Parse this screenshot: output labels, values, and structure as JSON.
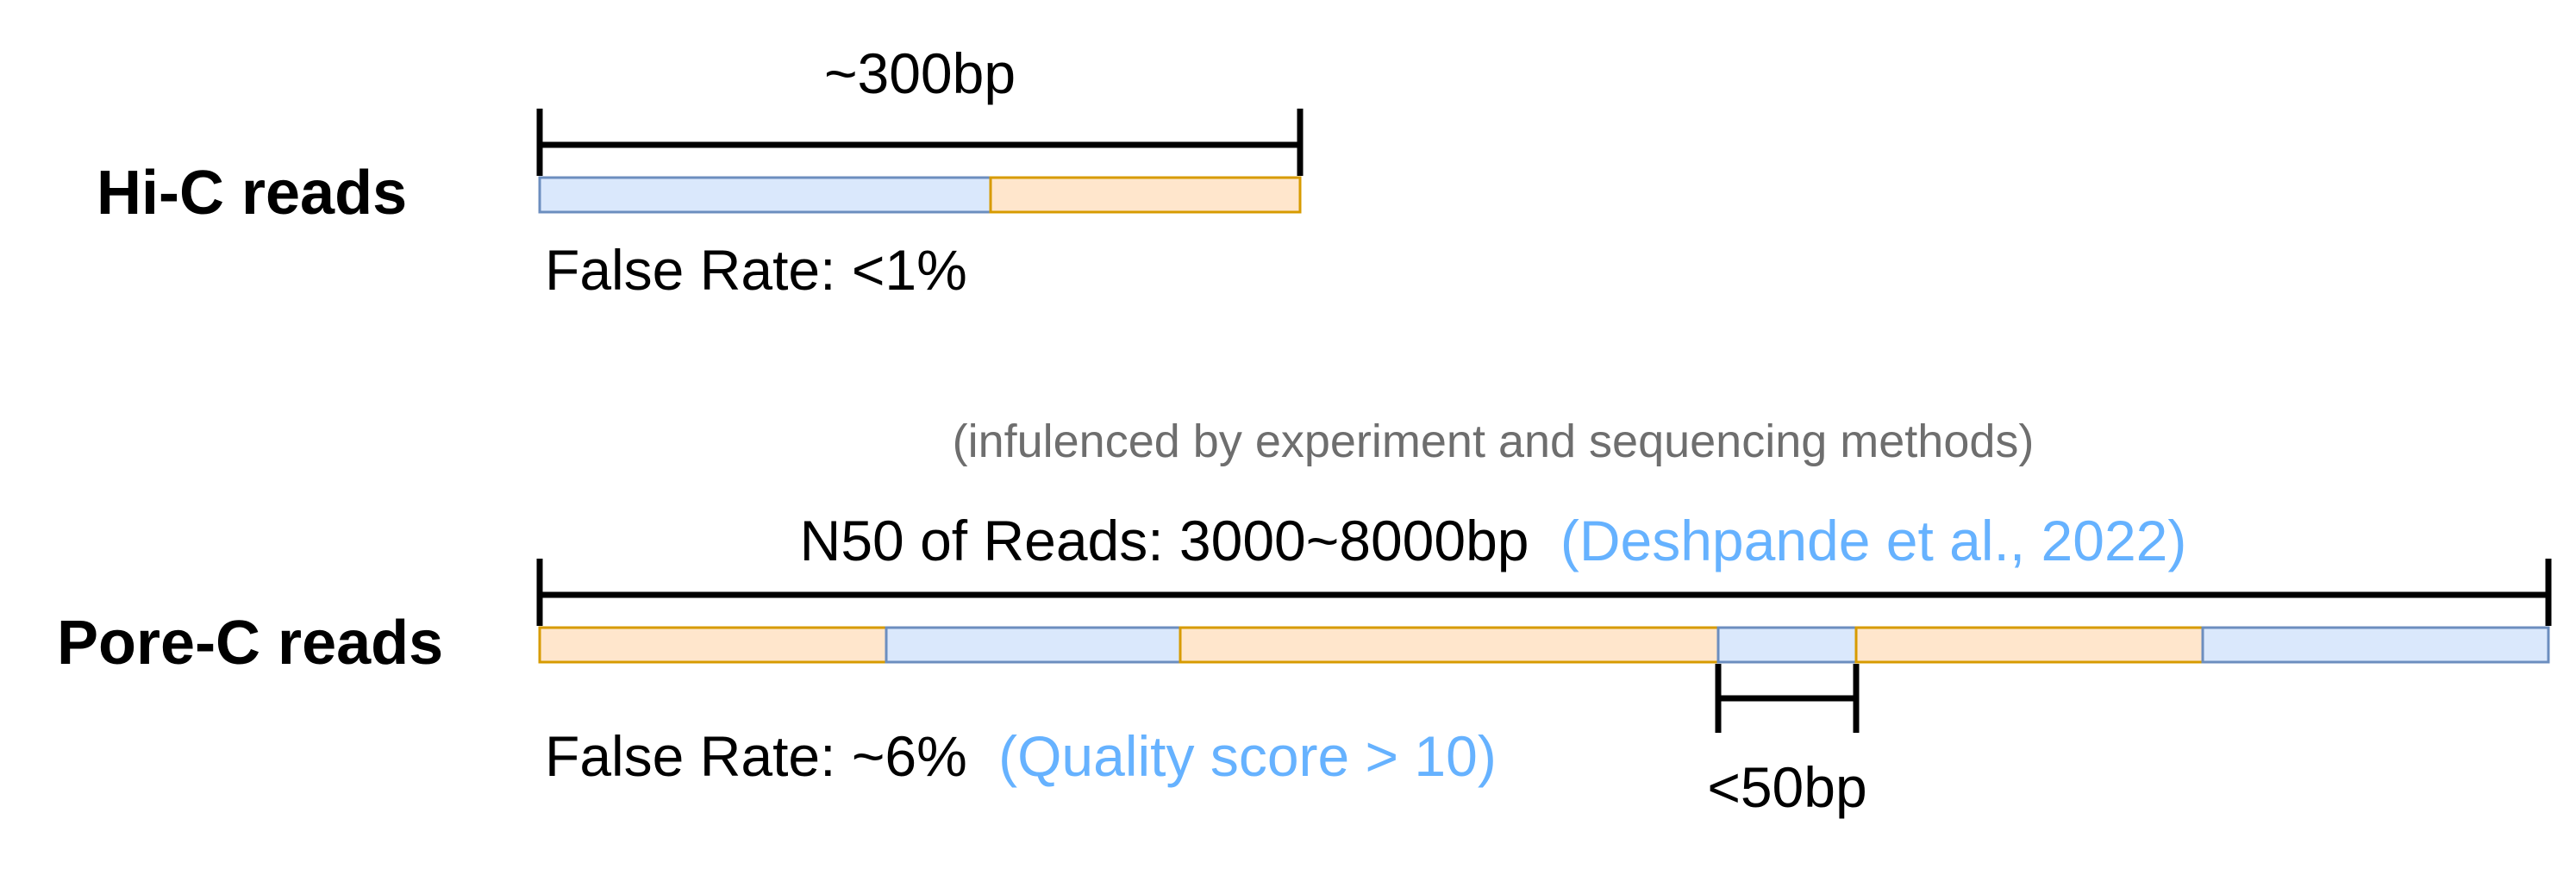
{
  "colors": {
    "blue_segment_fill": "#dae8fc",
    "blue_segment_stroke": "#6c8ebf",
    "orange_segment_fill": "#ffe6cc",
    "orange_segment_stroke": "#d79b00",
    "citation_text": "#66b2ff",
    "note_text": "#6e6e6e"
  },
  "hic": {
    "label": "Hi-C reads",
    "length_label": "~300bp",
    "false_rate": "False Rate: <1%",
    "segments": [
      "blue",
      "orange"
    ]
  },
  "porec": {
    "label": "Pore-C reads",
    "note": "(infulenced by experiment and sequencing methods)",
    "n50_label": "N50 of Reads: 3000~8000bp",
    "n50_citation": "(Deshpande et al., 2022)",
    "false_rate": "False Rate: ~6%",
    "false_rate_note": "(Quality score > 10)",
    "gap_label": "<50bp",
    "segments": [
      "orange",
      "blue",
      "orange",
      "blue",
      "orange",
      "blue"
    ]
  }
}
